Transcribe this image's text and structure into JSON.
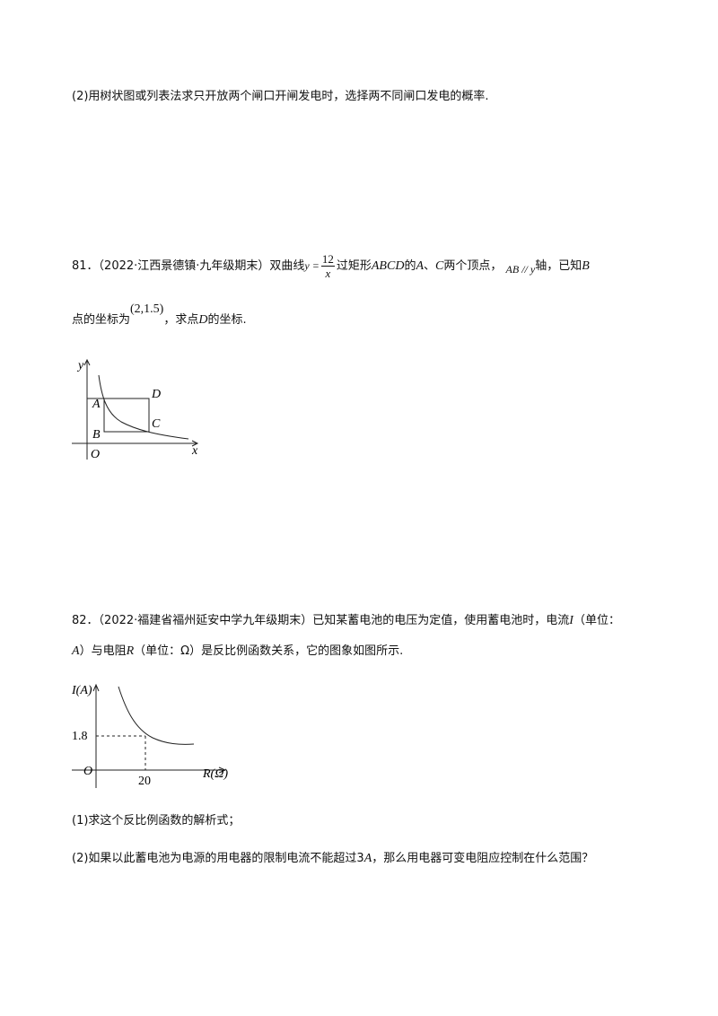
{
  "q80_part2": "(2)用树状图或列表法求只开放两个闸口开闸发电时，选择两不同闸口发电的概率.",
  "q81": {
    "number": "81．",
    "source": "（2022·江西景德镇·九年级期末）",
    "t1": "双曲线",
    "lhs": "y =",
    "numerator": "12",
    "denominator": "x",
    "t2": "过矩形",
    "rect": "ABCD",
    "t3": "的",
    "pA": "A",
    "t4": "、",
    "pC": "C",
    "t5": "两个顶点，",
    "parallel": "AB // y",
    "t6": "轴，已知",
    "pB": "B",
    "t7": "点的坐标为",
    "coord": "(2,1.5)",
    "t8": "，求点",
    "pD": "D",
    "t9": "的坐标.",
    "figure": {
      "y": "y",
      "A": "A",
      "D": "D",
      "B": "B",
      "C": "C",
      "O": "O",
      "x": "x"
    }
  },
  "q82": {
    "number": "82．",
    "source": "（2022·福建省福州延安中学九年级期末）",
    "t1": "已知某蓄电池的电压为定值，使用蓄电池时，电流",
    "I": "I",
    "t2": "（单位：",
    "A": "A",
    "t3": "）与电阻",
    "R": "R",
    "t4": "（单位：Ω）是反比例函数关系，它的图象如图所示.",
    "figure": {
      "ylabel": "I(A)",
      "ytick": "1.8",
      "origin": "O",
      "xtick": "20",
      "xlabel": "R(Ω)"
    },
    "part1": "(1)求这个反比例函数的解析式；",
    "part2a": "(2)如果以此蓄电池为电源的用电器的限制电流不能超过3",
    "part2A": "A",
    "part2b": "，那么用电器可变电阻应控制在什么范围？"
  }
}
